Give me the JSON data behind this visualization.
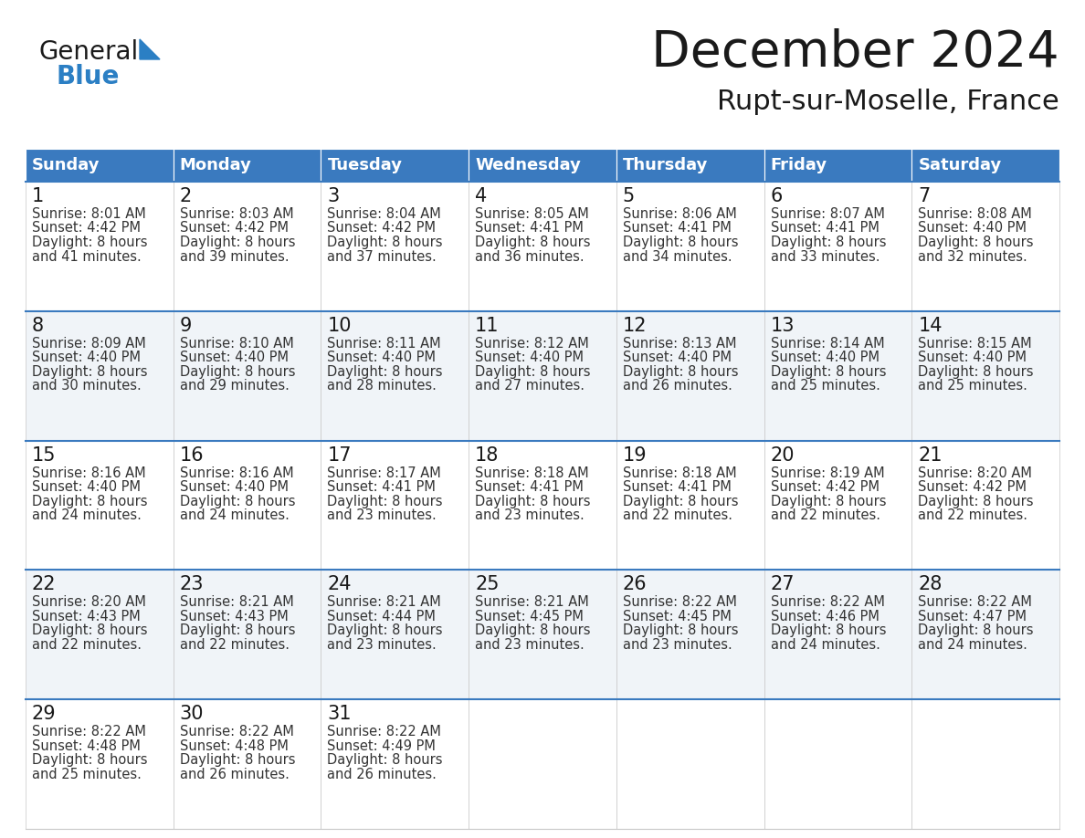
{
  "title": "December 2024",
  "subtitle": "Rupt-sur-Moselle, France",
  "header_color": "#3a7abf",
  "header_text_color": "#ffffff",
  "cell_bg_white": "#ffffff",
  "cell_bg_gray": "#f0f4f8",
  "border_color_blue": "#3a7abf",
  "border_color_light": "#c8c8c8",
  "day_names": [
    "Sunday",
    "Monday",
    "Tuesday",
    "Wednesday",
    "Thursday",
    "Friday",
    "Saturday"
  ],
  "days": [
    {
      "day": 1,
      "col": 0,
      "row": 0,
      "sunrise": "8:01 AM",
      "sunset": "4:42 PM",
      "daylight": "8 hours and 41 minutes."
    },
    {
      "day": 2,
      "col": 1,
      "row": 0,
      "sunrise": "8:03 AM",
      "sunset": "4:42 PM",
      "daylight": "8 hours and 39 minutes."
    },
    {
      "day": 3,
      "col": 2,
      "row": 0,
      "sunrise": "8:04 AM",
      "sunset": "4:42 PM",
      "daylight": "8 hours and 37 minutes."
    },
    {
      "day": 4,
      "col": 3,
      "row": 0,
      "sunrise": "8:05 AM",
      "sunset": "4:41 PM",
      "daylight": "8 hours and 36 minutes."
    },
    {
      "day": 5,
      "col": 4,
      "row": 0,
      "sunrise": "8:06 AM",
      "sunset": "4:41 PM",
      "daylight": "8 hours and 34 minutes."
    },
    {
      "day": 6,
      "col": 5,
      "row": 0,
      "sunrise": "8:07 AM",
      "sunset": "4:41 PM",
      "daylight": "8 hours and 33 minutes."
    },
    {
      "day": 7,
      "col": 6,
      "row": 0,
      "sunrise": "8:08 AM",
      "sunset": "4:40 PM",
      "daylight": "8 hours and 32 minutes."
    },
    {
      "day": 8,
      "col": 0,
      "row": 1,
      "sunrise": "8:09 AM",
      "sunset": "4:40 PM",
      "daylight": "8 hours and 30 minutes."
    },
    {
      "day": 9,
      "col": 1,
      "row": 1,
      "sunrise": "8:10 AM",
      "sunset": "4:40 PM",
      "daylight": "8 hours and 29 minutes."
    },
    {
      "day": 10,
      "col": 2,
      "row": 1,
      "sunrise": "8:11 AM",
      "sunset": "4:40 PM",
      "daylight": "8 hours and 28 minutes."
    },
    {
      "day": 11,
      "col": 3,
      "row": 1,
      "sunrise": "8:12 AM",
      "sunset": "4:40 PM",
      "daylight": "8 hours and 27 minutes."
    },
    {
      "day": 12,
      "col": 4,
      "row": 1,
      "sunrise": "8:13 AM",
      "sunset": "4:40 PM",
      "daylight": "8 hours and 26 minutes."
    },
    {
      "day": 13,
      "col": 5,
      "row": 1,
      "sunrise": "8:14 AM",
      "sunset": "4:40 PM",
      "daylight": "8 hours and 25 minutes."
    },
    {
      "day": 14,
      "col": 6,
      "row": 1,
      "sunrise": "8:15 AM",
      "sunset": "4:40 PM",
      "daylight": "8 hours and 25 minutes."
    },
    {
      "day": 15,
      "col": 0,
      "row": 2,
      "sunrise": "8:16 AM",
      "sunset": "4:40 PM",
      "daylight": "8 hours and 24 minutes."
    },
    {
      "day": 16,
      "col": 1,
      "row": 2,
      "sunrise": "8:16 AM",
      "sunset": "4:40 PM",
      "daylight": "8 hours and 24 minutes."
    },
    {
      "day": 17,
      "col": 2,
      "row": 2,
      "sunrise": "8:17 AM",
      "sunset": "4:41 PM",
      "daylight": "8 hours and 23 minutes."
    },
    {
      "day": 18,
      "col": 3,
      "row": 2,
      "sunrise": "8:18 AM",
      "sunset": "4:41 PM",
      "daylight": "8 hours and 23 minutes."
    },
    {
      "day": 19,
      "col": 4,
      "row": 2,
      "sunrise": "8:18 AM",
      "sunset": "4:41 PM",
      "daylight": "8 hours and 22 minutes."
    },
    {
      "day": 20,
      "col": 5,
      "row": 2,
      "sunrise": "8:19 AM",
      "sunset": "4:42 PM",
      "daylight": "8 hours and 22 minutes."
    },
    {
      "day": 21,
      "col": 6,
      "row": 2,
      "sunrise": "8:20 AM",
      "sunset": "4:42 PM",
      "daylight": "8 hours and 22 minutes."
    },
    {
      "day": 22,
      "col": 0,
      "row": 3,
      "sunrise": "8:20 AM",
      "sunset": "4:43 PM",
      "daylight": "8 hours and 22 minutes."
    },
    {
      "day": 23,
      "col": 1,
      "row": 3,
      "sunrise": "8:21 AM",
      "sunset": "4:43 PM",
      "daylight": "8 hours and 22 minutes."
    },
    {
      "day": 24,
      "col": 2,
      "row": 3,
      "sunrise": "8:21 AM",
      "sunset": "4:44 PM",
      "daylight": "8 hours and 23 minutes."
    },
    {
      "day": 25,
      "col": 3,
      "row": 3,
      "sunrise": "8:21 AM",
      "sunset": "4:45 PM",
      "daylight": "8 hours and 23 minutes."
    },
    {
      "day": 26,
      "col": 4,
      "row": 3,
      "sunrise": "8:22 AM",
      "sunset": "4:45 PM",
      "daylight": "8 hours and 23 minutes."
    },
    {
      "day": 27,
      "col": 5,
      "row": 3,
      "sunrise": "8:22 AM",
      "sunset": "4:46 PM",
      "daylight": "8 hours and 24 minutes."
    },
    {
      "day": 28,
      "col": 6,
      "row": 3,
      "sunrise": "8:22 AM",
      "sunset": "4:47 PM",
      "daylight": "8 hours and 24 minutes."
    },
    {
      "day": 29,
      "col": 0,
      "row": 4,
      "sunrise": "8:22 AM",
      "sunset": "4:48 PM",
      "daylight": "8 hours and 25 minutes."
    },
    {
      "day": 30,
      "col": 1,
      "row": 4,
      "sunrise": "8:22 AM",
      "sunset": "4:48 PM",
      "daylight": "8 hours and 26 minutes."
    },
    {
      "day": 31,
      "col": 2,
      "row": 4,
      "sunrise": "8:22 AM",
      "sunset": "4:49 PM",
      "daylight": "8 hours and 26 minutes."
    }
  ],
  "num_rows": 5,
  "logo_text_general": "General",
  "logo_text_blue": "Blue",
  "logo_color_general": "#1a1a1a",
  "logo_color_blue": "#2b7fc4",
  "logo_triangle_color": "#2b7fc4",
  "title_fontsize": 40,
  "subtitle_fontsize": 22,
  "dayname_fontsize": 13,
  "daynum_fontsize": 15,
  "cell_text_fontsize": 10.5
}
